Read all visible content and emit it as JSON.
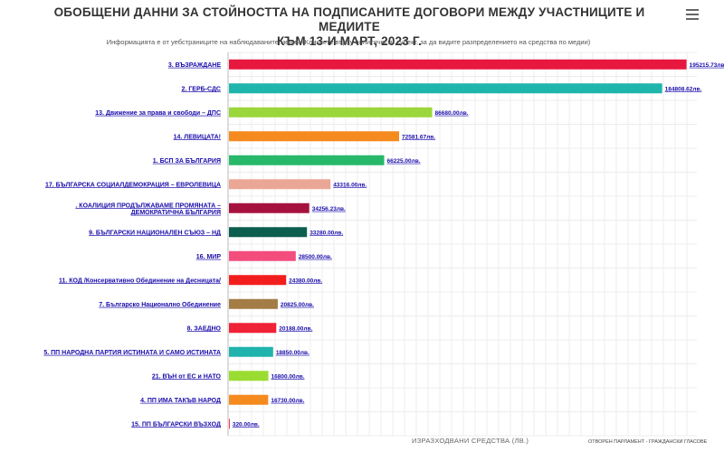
{
  "title_line1": "ОБОБЩЕНИ ДАННИ ЗА СТОЙНОСТТА НА ПОДПИСАНИТЕ ДОГОВОРИ МЕЖДУ УЧАСТНИЦИТЕ И МЕДИИТЕ",
  "title_line2": "КЪМ 13-И МАРТ, 2023 Г.",
  "subtitle": "Информацията е от уебстраниците на наблюдаваните медии (Кликнете върху политически субект, за да видите разпределението на средства по медии)",
  "menu_icon": "hamburger-menu-icon",
  "xlabel": "ИЗРАЗХОДВАНИ СРЕДСТВА (ЛВ.)",
  "credit": "ОТВОРЕН ПАРЛАМЕНТ - ГРАЖДАНСКИ ГЛАСОВЕ",
  "chart_data": {
    "type": "bar",
    "orientation": "horizontal",
    "grid": true,
    "xlim": [
      0,
      200000
    ],
    "categories": [
      "3. ВЪЗРАЖДАНЕ",
      "2. ГЕРБ-СДС",
      "13. Движение за права и свободи – ДПС",
      "14. ЛЕВИЦАТА!",
      "1. БСП ЗА БЪЛГАРИЯ",
      "17. БЪЛГАРСКА СОЦИАЛДЕМОКРАЦИЯ – ЕВРОЛЕВИЦА",
      ". КОАЛИЦИЯ ПРОДЪЛЖАВАМЕ ПРОМЯНАТА – ДЕМОКРАТИЧНА БЪЛГАРИЯ",
      "9. БЪЛГАРСКИ НАЦИОНАЛЕН СЪЮЗ – НД",
      "16. МИР",
      "11. КОД /Консервативно Обединение на Десницата/",
      "7. Българско Национално Обединение",
      "8. ЗАЕДНО",
      "5. ПП НАРОДНА ПАРТИЯ ИСТИНАТА И САМО ИСТИНАТА",
      "21. ВЪН от ЕС и НАТО",
      "4. ПП ИМА ТАКЪВ НАРОД",
      "15. ПП БЪЛГАРСКИ ВЪЗХОД"
    ],
    "values": [
      195215.73,
      184808.62,
      86680,
      72581.67,
      66225,
      43316,
      34256.23,
      33280,
      28500,
      24380,
      20825,
      20188,
      18850,
      16800,
      16730,
      320
    ],
    "value_labels": [
      "195215.73лв.",
      "184808.62лв.",
      "86680.00лв.",
      "72581.67лв.",
      "66225.00лв.",
      "43316.00лв.",
      "34256.23лв.",
      "33280.00лв.",
      "28500.00лв.",
      "24380.00лв.",
      "20825.00лв.",
      "20188.00лв.",
      "18850.00лв.",
      "16800.00лв.",
      "16730.00лв.",
      "320.00лв."
    ],
    "colors": [
      "#e8173f",
      "#1fb5ac",
      "#9bd63a",
      "#f58a1f",
      "#27b86a",
      "#eba796",
      "#a6123e",
      "#0c5e4e",
      "#f24d7d",
      "#f21e1e",
      "#a47c46",
      "#f02238",
      "#20b3ad",
      "#9bdc32",
      "#f58a1f",
      "#e8173f"
    ]
  }
}
